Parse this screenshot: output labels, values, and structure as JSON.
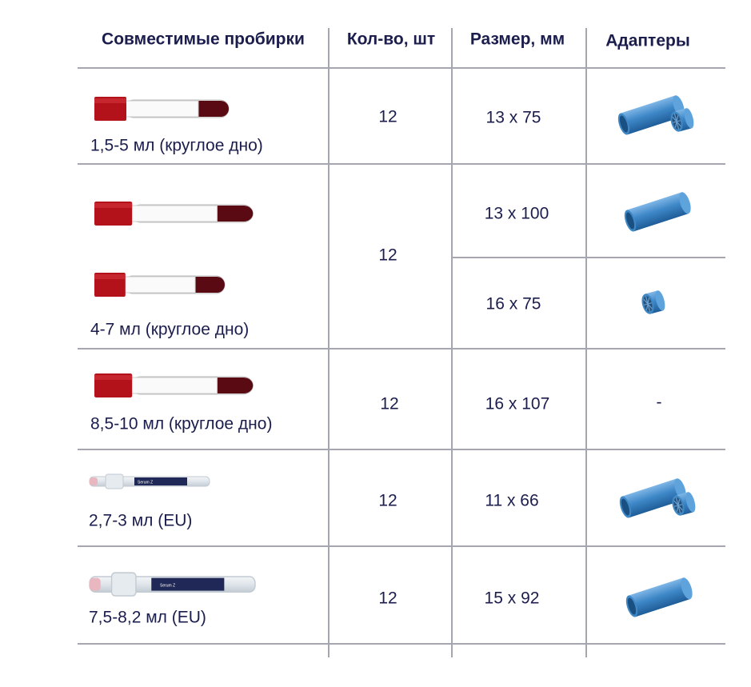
{
  "header": [
    "Совместимые пробирки",
    "Кол-во, шт",
    "Размер, мм",
    "Адаптеры"
  ],
  "rows": [
    {
      "label": "1,5-5 мл (круглое дно)",
      "qty": "12",
      "sizes": [
        "13 x 75"
      ]
    },
    {
      "label": "4-7 мл (круглое дно)",
      "qty": "12",
      "sizes": [
        "13 x 100",
        "16 x 75"
      ]
    },
    {
      "label": "8,5-10 мл (круглое дно)",
      "qty": "12",
      "sizes": [
        "16 x 107"
      ],
      "adapter": "-"
    },
    {
      "label": "2,7-3 мл (EU)",
      "qty": "12",
      "sizes": [
        "11 x 66"
      ],
      "tube_label": "Serum Z"
    },
    {
      "label": "7,5-8,2 мл (EU)",
      "qty": "12",
      "sizes": [
        "15 x 92"
      ],
      "tube_label": "Serum Z"
    }
  ]
}
